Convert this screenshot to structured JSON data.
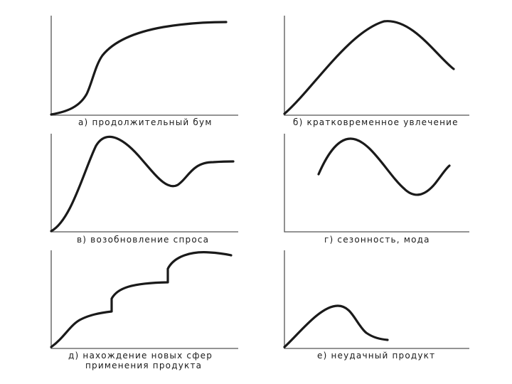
{
  "panels": [
    {
      "id": "a",
      "caption_lines": [
        "а) продолжительный бум"
      ]
    },
    {
      "id": "b",
      "caption_lines": [
        "б) кратковременное увлечение"
      ]
    },
    {
      "id": "c",
      "caption_lines": [
        "в) возобновление спроса"
      ]
    },
    {
      "id": "d",
      "caption_lines": [
        "г) сезонность, мода"
      ]
    },
    {
      "id": "e",
      "caption_lines": [
        "д) нахождение новых сфер",
        "применения продукта"
      ]
    },
    {
      "id": "f",
      "caption_lines": [
        "е) неудачный продукт"
      ]
    }
  ],
  "colors": {
    "curve": "#1a1a1a",
    "axis": "#555555",
    "background": "#ffffff"
  }
}
